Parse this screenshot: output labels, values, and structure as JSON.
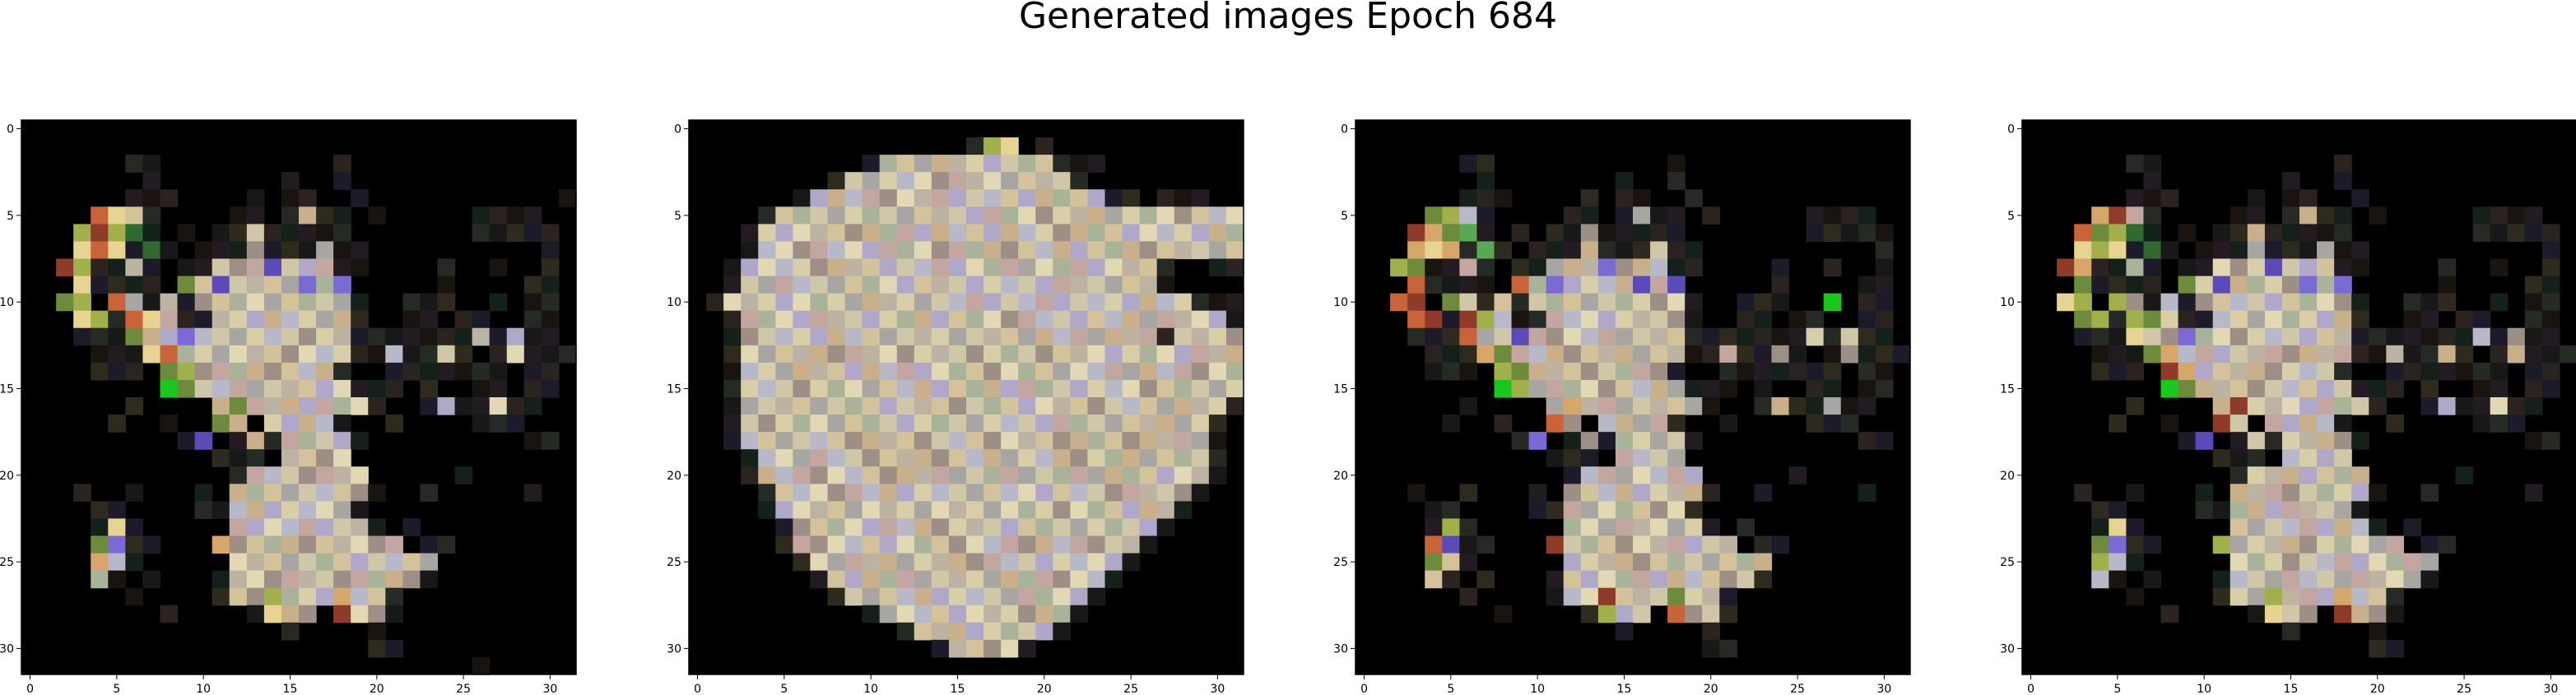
{
  "title": "Generated images Epoch 684",
  "chart_data": {
    "type": "heatmap",
    "description_note": "",
    "grid_size": 32,
    "xlim": [
      -0.5,
      31.5
    ],
    "ylim": [
      31.5,
      -0.5
    ],
    "x_ticks": [
      0,
      5,
      10,
      15,
      20,
      25,
      30
    ],
    "y_ticks": [
      0,
      5,
      10,
      15,
      20,
      25,
      30
    ],
    "panels": [
      {
        "rows": [
          "................................",
          "................................",
          "......ss..........s.............",
          ".......s.......s..s.............",
          "......sss....s.ss..s...........s",
          "....wwbs....ss.sbss.s.....ssss..",
          "...wwwgs.s.ssbsssss.......sssss.",
          "...wwwsgs.sssbsssbss..........s.",
          "..wwssbs.ssbbbpbbbss....s..s..s.",
          "...wssss.wbpbbbbpbp.....s....ss.",
          "..ww.wbsbsbbbbbbbbbs..sss..s.ss.",
          "...wwswwbssbbbbbbbbs..ss.ss..ss.",
          "...ssswbbpbbbbbbbbbsssssssbsbss.",
          "....ssswwbbbbbbbbbbssbssbs.sbsss",
          "....sss.wwbbbbbbbbs..sssssss.ss.",
          "........Gwbbbbbbbbbsss.s..ss.ss.",
          "......s....bwbbbbbbbs..sbssbss..",
          ".....s..s..wb.bbbbs..s....sss...",
          ".........sp.sbsbbbbs.........ss.",
          "...........sss.bbbb.............",
          "............sbbbbbbb.....s......",
          "...s..s...s.bbbbbbbbs..s.....s..",
          "....ss....ssbbbbbbbs............",
          "....sws.....bbbbbbbbs.s.........",
          "....wpss...wbbbbbbbbbb.ss.......",
          "....wbs.....bbbbbbbbbbbb........",
          "....bs.s...sbbbbbbbbbbbs........",
          "......s....sbbwbbbwbbs..........",
          "........s....swbb.wbbs..........",
          "...............s....s...........",
          "....................ss..........",
          "..........................s....."
        ]
      },
      {
        "rows": [
          "................................",
          "................sww.s...........",
          "..........sbbbbbbbbbbsss........",
          "........sbbbbbbbbbbbbbs.........",
          "......sbbbbbbbbbbbbbbbbbss.sss..",
          "....sbbbbbbbbbbbbbbbbbbbbbbbbbbb",
          "...sbbbbbbbbbbbbbbbbbbbbbbbbbbbb",
          "...sbbbbbbbbbbbbbbbbbbbbbbbbbbbb",
          "..sbbbbbbbbbbbbbbbbbbbbbbbbs..ss",
          "..sbbbbbbbbbbbbbbbbbbbbbbbbs....",
          ".sbbbbbbbbbbbbbbbbbbbbbbbbbbbsss",
          "..sbbbbbbbbbbbbbbbbbbbbbbbbbbbbs",
          "..sbbbbbbbbbbbbbbbbbbbbbbbbsbbbb",
          "..sbbbbbbbbbbbbbbbbbbbbbbbbbbbbb",
          "..sbbbbbbbbbbbbbbbbbbbbbbbbbbbbb",
          "..sbbbbbbbbbbbbbbbbbbbbbbbbbbbbb",
          "..sbbbbbbbbbbbbbbbbbbbbbbbbbbbbs",
          "..sbbbbbbbbbbbbbbbbbbbbbbbbbbbs.",
          "..sbbbbbbbbbbbbbbbbbbbbbbbbbbbs.",
          "...sbbbbbbbbbbbbbbbbbbbbbbbbbbs.",
          "...sbbbbbbbbbbbbbbbbbbbbbbbbbbs.",
          "....sbbbbbbbbbbbbbbbbbbbbbbbbs..",
          "....sbbbbbbbbbbbbbbbbbbbbbbbs...",
          ".....sbbbbbbbbbbbbbbbbbbbbbs....",
          ".....sbbbbbbbbbbbbbbbbbbbbs.....",
          "......sbbbbbbbbbbbbbbbbbbs......",
          ".......sbbbbbbbbbbbbbbbbs.......",
          "........sbbbbbbbbbbbbbbs........",
          "..........sbbbbbbbbbbbs.........",
          "............sbbbbbbbbs..........",
          "..............sbbbbs............",
          "................................"
        ]
      },
      {
        "rows": [
          "................................",
          "................................",
          "......ss..........s.............",
          ".......s.......s..s.............",
          "......sss....s.ss..s............",
          "....wwbs....ss.sbss.s.....ssss..",
          "...wwwgs.s.ssbsssss.......sssss.",
          "...wwwsgs.sssbsssbss..........s.",
          "..wwssbs.ssbbbpbbbss....s..s..s.",
          "...wssss.wbpbbbbpbp.....s....ss.",
          "..ww.wbsbsbbbbbbbbbs..sss..G.ss.",
          "...wwswwbssbbbbbbbbs..ss.ss..ss.",
          "...ssswbbpbbbbbbbbbsssssssbsbss.",
          "....ssswwbbbbbbbbbbssbssbs.sbsss",
          "....sss.wwbbbbbbbbs..sssssss.ss.",
          "........Gwbbbbbbbbbsss.s..ss.ss.",
          "......s....bwbbbbbbbs..sbssbss..",
          ".....s..s..wb.bbbbs..s....sss...",
          ".........sp.sbsbbbbs.........ss.",
          "...........sss.bbbb.............",
          "............sbbbbbbb.....s......",
          "...s..s...s.bbbbbbbbs..s.....s..",
          "....ss....ssbbbbbbbs............",
          "....sws.....bbbbbbbbs.s.........",
          "....wpss...wbbbbbbbbbb.ss.......",
          "....wbs.....bbbbbbbbbbbb........",
          "....bs.s...sbbbbbbbbbbbs........",
          "......s....sbbwbbbwbbs..........",
          "........s....swbb.wbbs..........",
          "...............s....s...........",
          "....................ss..........",
          "................................"
        ]
      },
      {
        "rows": [
          "................................",
          "................................",
          "......ss..........s.............",
          ".......s.......s..s.............",
          "......sss....s.ss..s............",
          "....wwbs....ss.sbss.s.....ssss..",
          "...wwwgs.s.ssbsssss.......sssss.",
          "...wwwsgs.sssbsssbss..........s.",
          "..wwssbs.ssbbbpbbbss....s..s..s.",
          "...wssss.wbpbbbbpbp.....s....ss.",
          "..ww.wbsbsbbbbbbbbbs..sss..s.ss.",
          "...wwswwbssbbbbbbbbs..ss.ss..ss.",
          "...ssswbbpbbbbbbbbbsssssssbsbss.",
          "....ssswwbbbbbbbbbbssbssbs.sbsss",
          "....sss.wwbbbbbbbbs..sssssss.ss.",
          "........Gwbbbbbbbbbsss.s..ss.ss.",
          "......s....bwbbbbbbbs..sbssbss..",
          ".....s..s..wb.bbbbs..s....sss...",
          ".........sp.sbsbbbbs.........ss.",
          "...........sss.bbbb.............",
          "............sbbbbbbb.....s......",
          "...s..s...s.bbbbbbbbs..s.....s..",
          "....ss....ssbbbbbbbs............",
          "....sws.....bbbbbbbbs.s.........",
          "....wpss...wbbbbbbbbbb.ss.......",
          "....wbs.....bbbbbbbbbbbb........",
          "....bs.s...sbbbbbbbbbbbs........",
          "......s....sbbwbbbwbbs..........",
          "........s....swbb.wbbs..........",
          "...............s....s...........",
          "....................ss..........",
          "................................"
        ]
      }
    ],
    "palettes": {
      "b": [
        "#cfc7a8",
        "#bdb3a3",
        "#d8cfa9",
        "#a8a6a2",
        "#c9b08b",
        "#b7b9c9",
        "#d4c39a",
        "#9d8f86",
        "#e2d8b4",
        "#a9b39a",
        "#c4a6a0",
        "#b0a8c8"
      ],
      "w": [
        "#c9633a",
        "#e7d392",
        "#a1b04a",
        "#8e3b2a",
        "#d6a66b",
        "#6e8a3c"
      ],
      "s": [
        "#1a1410",
        "#221c22",
        "#14201a",
        "#2b2320",
        "#1d1a2a",
        "#2e2a1e",
        "#181818",
        "#262a24"
      ],
      "g": [
        "#5aa854",
        "#2f6b30"
      ],
      "p": [
        "#7b6ad6",
        "#5b4bb8"
      ],
      "G": [
        "#18c81a"
      ],
      ".": [
        "#000000",
        "#050505",
        "#0a0808",
        "#080a0a"
      ]
    }
  }
}
